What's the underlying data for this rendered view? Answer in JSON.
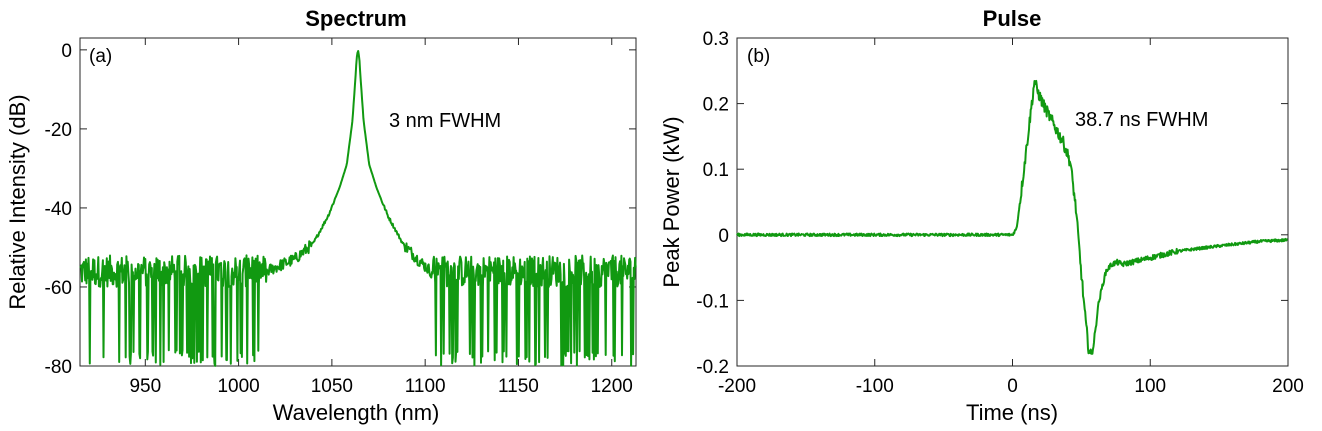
{
  "figure": {
    "line_color": "#119911"
  },
  "chart_data": [
    {
      "type": "line",
      "title": "Spectrum",
      "panel_label": "(a)",
      "xlabel": "Wavelength (nm)",
      "ylabel": "Relative Intensity (dB)",
      "xlim": [
        915,
        1213
      ],
      "ylim": [
        -80,
        3
      ],
      "xticks": [
        950,
        1000,
        1050,
        1100,
        1150,
        1200
      ],
      "yticks": [
        0,
        -20,
        -40,
        -60,
        -80
      ],
      "annotation": {
        "text": "3 nm FWHM",
        "x": 1083,
        "y": -17
      },
      "series": [
        {
          "name": "spectrum",
          "center": 1064,
          "peak_db": 0,
          "fwhm_nm": 3,
          "noise_floor_db": -56,
          "noise_limit_db": -80,
          "x": [
            915,
            1015,
            1030,
            1040,
            1048,
            1054,
            1058,
            1061,
            1062.5,
            1063.3,
            1064,
            1064.7,
            1065.5,
            1067,
            1070,
            1074,
            1080,
            1088,
            1096,
            1103
          ],
          "y": [
            -56,
            -56,
            -53,
            -49,
            -42,
            -35,
            -29,
            -18,
            -8,
            -2,
            0,
            -2,
            -8,
            -18,
            -29,
            -35,
            -42,
            -49,
            -53,
            -56
          ]
        }
      ]
    },
    {
      "type": "line",
      "title": "Pulse",
      "panel_label": "(b)",
      "xlabel": "Time (ns)",
      "ylabel": "Peak Power (kW)",
      "xlim": [
        -200,
        200
      ],
      "ylim": [
        -0.2,
        0.3
      ],
      "xticks": [
        -200,
        -100,
        0,
        100,
        200
      ],
      "yticks": [
        0.3,
        0.2,
        0.1,
        0,
        -0.1,
        -0.2
      ],
      "annotation": {
        "text": "38.7 ns FWHM",
        "x": 45,
        "y": 0.2
      },
      "series": [
        {
          "name": "pulse",
          "fwhm_ns": 38.7,
          "x": [
            -200,
            0,
            3,
            6,
            10,
            14,
            16,
            18,
            22,
            27,
            32,
            37,
            42,
            46,
            50,
            53,
            55,
            57,
            58,
            60,
            62,
            65,
            68,
            72,
            76,
            80,
            90,
            100,
            120,
            150,
            180,
            200
          ],
          "y": [
            0,
            0,
            0.01,
            0.06,
            0.13,
            0.2,
            0.235,
            0.22,
            0.2,
            0.18,
            0.16,
            0.14,
            0.11,
            0.04,
            -0.06,
            -0.13,
            -0.17,
            -0.185,
            -0.175,
            -0.15,
            -0.11,
            -0.08,
            -0.055,
            -0.045,
            -0.042,
            -0.045,
            -0.04,
            -0.035,
            -0.025,
            -0.017,
            -0.01,
            -0.008
          ]
        }
      ]
    }
  ]
}
